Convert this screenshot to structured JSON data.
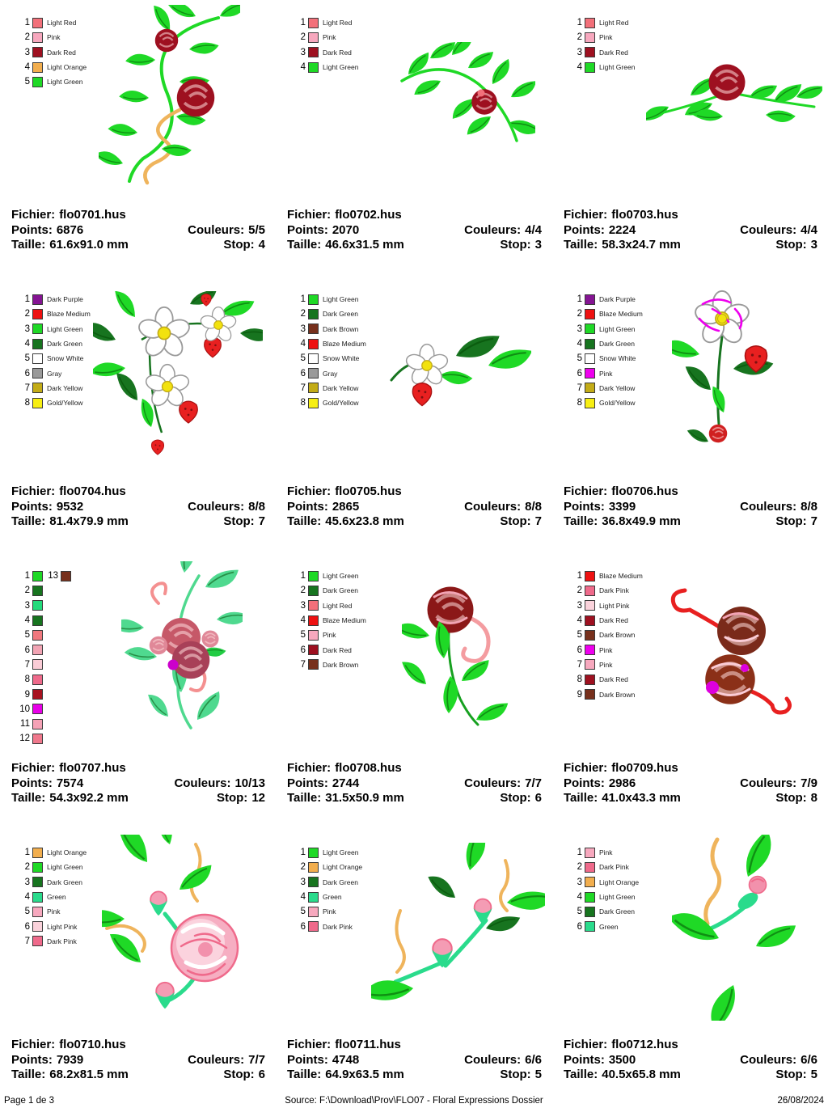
{
  "labels": {
    "fichier": "Fichier:",
    "points": "Points:",
    "taille": "Taille:",
    "couleurs": "Couleurs:",
    "stop": "Stop:"
  },
  "footer": {
    "page": "Page 1 de 3",
    "source": "Source: F:\\Download\\Prov\\FLO07 - Floral Expressions Dossier",
    "date": "26/08/2024"
  },
  "designs": [
    {
      "file": "flo0701.hus",
      "points": "6876",
      "taille": "61.6x91.0 mm",
      "couleurs": "5/5",
      "stop": "4",
      "legend": [
        {
          "num": "1",
          "color": "#F2707A",
          "label": "Light Red"
        },
        {
          "num": "2",
          "color": "#F7A8BE",
          "label": "Pink"
        },
        {
          "num": "3",
          "color": "#9E1020",
          "label": "Dark Red"
        },
        {
          "num": "4",
          "color": "#F2AE4E",
          "label": "Light Orange"
        },
        {
          "num": "5",
          "color": "#1FD926",
          "label": "Light Green"
        }
      ]
    },
    {
      "file": "flo0702.hus",
      "points": "2070",
      "taille": "46.6x31.5 mm",
      "couleurs": "4/4",
      "stop": "3",
      "legend": [
        {
          "num": "1",
          "color": "#F2707A",
          "label": "Light Red"
        },
        {
          "num": "2",
          "color": "#F7A8BE",
          "label": "Pink"
        },
        {
          "num": "3",
          "color": "#9E1020",
          "label": "Dark Red"
        },
        {
          "num": "4",
          "color": "#1FD926",
          "label": "Light Green"
        }
      ]
    },
    {
      "file": "flo0703.hus",
      "points": "2224",
      "taille": "58.3x24.7 mm",
      "couleurs": "4/4",
      "stop": "3",
      "legend": [
        {
          "num": "1",
          "color": "#F2707A",
          "label": "Light Red"
        },
        {
          "num": "2",
          "color": "#F7A8BE",
          "label": "Pink"
        },
        {
          "num": "3",
          "color": "#9E1020",
          "label": "Dark Red"
        },
        {
          "num": "4",
          "color": "#1FD926",
          "label": "Light Green"
        }
      ]
    },
    {
      "file": "flo0704.hus",
      "points": "9532",
      "taille": "81.4x79.9 mm",
      "couleurs": "8/8",
      "stop": "7",
      "legend": [
        {
          "num": "1",
          "color": "#851493",
          "label": "Dark Purple"
        },
        {
          "num": "2",
          "color": "#EE1111",
          "label": "Blaze Medium"
        },
        {
          "num": "3",
          "color": "#1FD926",
          "label": "Light Green"
        },
        {
          "num": "4",
          "color": "#17741F",
          "label": "Dark Green"
        },
        {
          "num": "5",
          "color": "#FFFFFF",
          "label": "Snow White"
        },
        {
          "num": "6",
          "color": "#9A9A9A",
          "label": "Gray"
        },
        {
          "num": "7",
          "color": "#C3AC17",
          "label": "Dark Yellow"
        },
        {
          "num": "8",
          "color": "#F7EF13",
          "label": "Gold/Yellow"
        }
      ]
    },
    {
      "file": "flo0705.hus",
      "points": "2865",
      "taille": "45.6x23.8 mm",
      "couleurs": "8/8",
      "stop": "7",
      "legend": [
        {
          "num": "1",
          "color": "#1FD926",
          "label": "Light Green"
        },
        {
          "num": "2",
          "color": "#17741F",
          "label": "Dark Green"
        },
        {
          "num": "3",
          "color": "#77301C",
          "label": "Dark Brown"
        },
        {
          "num": "4",
          "color": "#EE1111",
          "label": "Blaze Medium"
        },
        {
          "num": "5",
          "color": "#FFFFFF",
          "label": "Snow White"
        },
        {
          "num": "6",
          "color": "#9A9A9A",
          "label": "Gray"
        },
        {
          "num": "7",
          "color": "#C3AC17",
          "label": "Dark Yellow"
        },
        {
          "num": "8",
          "color": "#F7EF13",
          "label": "Gold/Yellow"
        }
      ]
    },
    {
      "file": "flo0706.hus",
      "points": "3399",
      "taille": "36.8x49.9 mm",
      "couleurs": "8/8",
      "stop": "7",
      "legend": [
        {
          "num": "1",
          "color": "#851493",
          "label": "Dark Purple"
        },
        {
          "num": "2",
          "color": "#EE1111",
          "label": "Blaze Medium"
        },
        {
          "num": "3",
          "color": "#1FD926",
          "label": "Light Green"
        },
        {
          "num": "4",
          "color": "#17741F",
          "label": "Dark Green"
        },
        {
          "num": "5",
          "color": "#FFFFFF",
          "label": "Snow White"
        },
        {
          "num": "6",
          "color": "#EE00EE",
          "label": "Pink"
        },
        {
          "num": "7",
          "color": "#C3AC17",
          "label": "Dark Yellow"
        },
        {
          "num": "8",
          "color": "#F7EF13",
          "label": "Gold/Yellow"
        }
      ]
    },
    {
      "file": "flo0707.hus",
      "points": "7574",
      "taille": "54.3x92.2 mm",
      "couleurs": "10/13",
      "stop": "12",
      "legend": [
        {
          "num": "1",
          "color": "#1FD926",
          "label": ""
        },
        {
          "num": "13",
          "color": "#77301C",
          "label": "",
          "same_row": true
        },
        {
          "num": "2",
          "color": "#17741F",
          "label": ""
        },
        {
          "num": "3",
          "color": "#23DB7C",
          "label": ""
        },
        {
          "num": "4",
          "color": "#17741F",
          "label": ""
        },
        {
          "num": "5",
          "color": "#F0787E",
          "label": ""
        },
        {
          "num": "6",
          "color": "#F2A4B4",
          "label": ""
        },
        {
          "num": "7",
          "color": "#FACCD6",
          "label": ""
        },
        {
          "num": "8",
          "color": "#EF6A8B",
          "label": ""
        },
        {
          "num": "9",
          "color": "#A81220",
          "label": ""
        },
        {
          "num": "10",
          "color": "#E800E8",
          "label": ""
        },
        {
          "num": "11",
          "color": "#F5A2B6",
          "label": ""
        },
        {
          "num": "12",
          "color": "#F0788C",
          "label": ""
        }
      ]
    },
    {
      "file": "flo0708.hus",
      "points": "2744",
      "taille": "31.5x50.9 mm",
      "couleurs": "7/7",
      "stop": "6",
      "legend": [
        {
          "num": "1",
          "color": "#1FD926",
          "label": "Light Green"
        },
        {
          "num": "2",
          "color": "#17741F",
          "label": "Dark Green"
        },
        {
          "num": "3",
          "color": "#F2707A",
          "label": "Light Red"
        },
        {
          "num": "4",
          "color": "#EE1111",
          "label": "Blaze Medium"
        },
        {
          "num": "5",
          "color": "#F7A8BE",
          "label": "Pink"
        },
        {
          "num": "6",
          "color": "#9E1020",
          "label": "Dark Red"
        },
        {
          "num": "7",
          "color": "#77301C",
          "label": "Dark Brown"
        }
      ]
    },
    {
      "file": "flo0709.hus",
      "points": "2986",
      "taille": "41.0x43.3 mm",
      "couleurs": "7/9",
      "stop": "8",
      "legend": [
        {
          "num": "1",
          "color": "#EE1111",
          "label": "Blaze Medium"
        },
        {
          "num": "2",
          "color": "#EF6A8B",
          "label": "Dark Pink"
        },
        {
          "num": "3",
          "color": "#FAD2DB",
          "label": "Light Pink"
        },
        {
          "num": "4",
          "color": "#9E1020",
          "label": "Dark Red"
        },
        {
          "num": "5",
          "color": "#77301C",
          "label": "Dark Brown"
        },
        {
          "num": "6",
          "color": "#EE00EE",
          "label": "Pink"
        },
        {
          "num": "7",
          "color": "#F7A8BE",
          "label": "Pink"
        },
        {
          "num": "8",
          "color": "#9E1020",
          "label": "Dark Red"
        },
        {
          "num": "9",
          "color": "#77301C",
          "label": "Dark Brown"
        }
      ]
    },
    {
      "file": "flo0710.hus",
      "points": "7939",
      "taille": "68.2x81.5 mm",
      "couleurs": "7/7",
      "stop": "6",
      "legend": [
        {
          "num": "1",
          "color": "#F2AE4E",
          "label": "Light Orange"
        },
        {
          "num": "2",
          "color": "#1FD926",
          "label": "Light Green"
        },
        {
          "num": "3",
          "color": "#17741F",
          "label": "Dark Green"
        },
        {
          "num": "4",
          "color": "#2ADB8C",
          "label": "Green"
        },
        {
          "num": "5",
          "color": "#F7A8BE",
          "label": "Pink"
        },
        {
          "num": "6",
          "color": "#FAD2DB",
          "label": "Light Pink"
        },
        {
          "num": "7",
          "color": "#EF6A8B",
          "label": "Dark Pink"
        }
      ]
    },
    {
      "file": "flo0711.hus",
      "points": "4748",
      "taille": "64.9x63.5 mm",
      "couleurs": "6/6",
      "stop": "5",
      "legend": [
        {
          "num": "1",
          "color": "#1FD926",
          "label": "Light Green"
        },
        {
          "num": "2",
          "color": "#F2AE4E",
          "label": "Light Orange"
        },
        {
          "num": "3",
          "color": "#17741F",
          "label": "Dark Green"
        },
        {
          "num": "4",
          "color": "#2ADB8C",
          "label": "Green"
        },
        {
          "num": "5",
          "color": "#F7A8BE",
          "label": "Pink"
        },
        {
          "num": "6",
          "color": "#EF6A8B",
          "label": "Dark Pink"
        }
      ]
    },
    {
      "file": "flo0712.hus",
      "points": "3500",
      "taille": "40.5x65.8 mm",
      "couleurs": "6/6",
      "stop": "5",
      "legend": [
        {
          "num": "1",
          "color": "#F7A8BE",
          "label": "Pink"
        },
        {
          "num": "2",
          "color": "#EF6A8B",
          "label": "Dark Pink"
        },
        {
          "num": "3",
          "color": "#F2AE4E",
          "label": "Light Orange"
        },
        {
          "num": "4",
          "color": "#1FD926",
          "label": "Light Green"
        },
        {
          "num": "5",
          "color": "#17741F",
          "label": "Dark Green"
        },
        {
          "num": "6",
          "color": "#2ADB8C",
          "label": "Green"
        }
      ]
    }
  ]
}
